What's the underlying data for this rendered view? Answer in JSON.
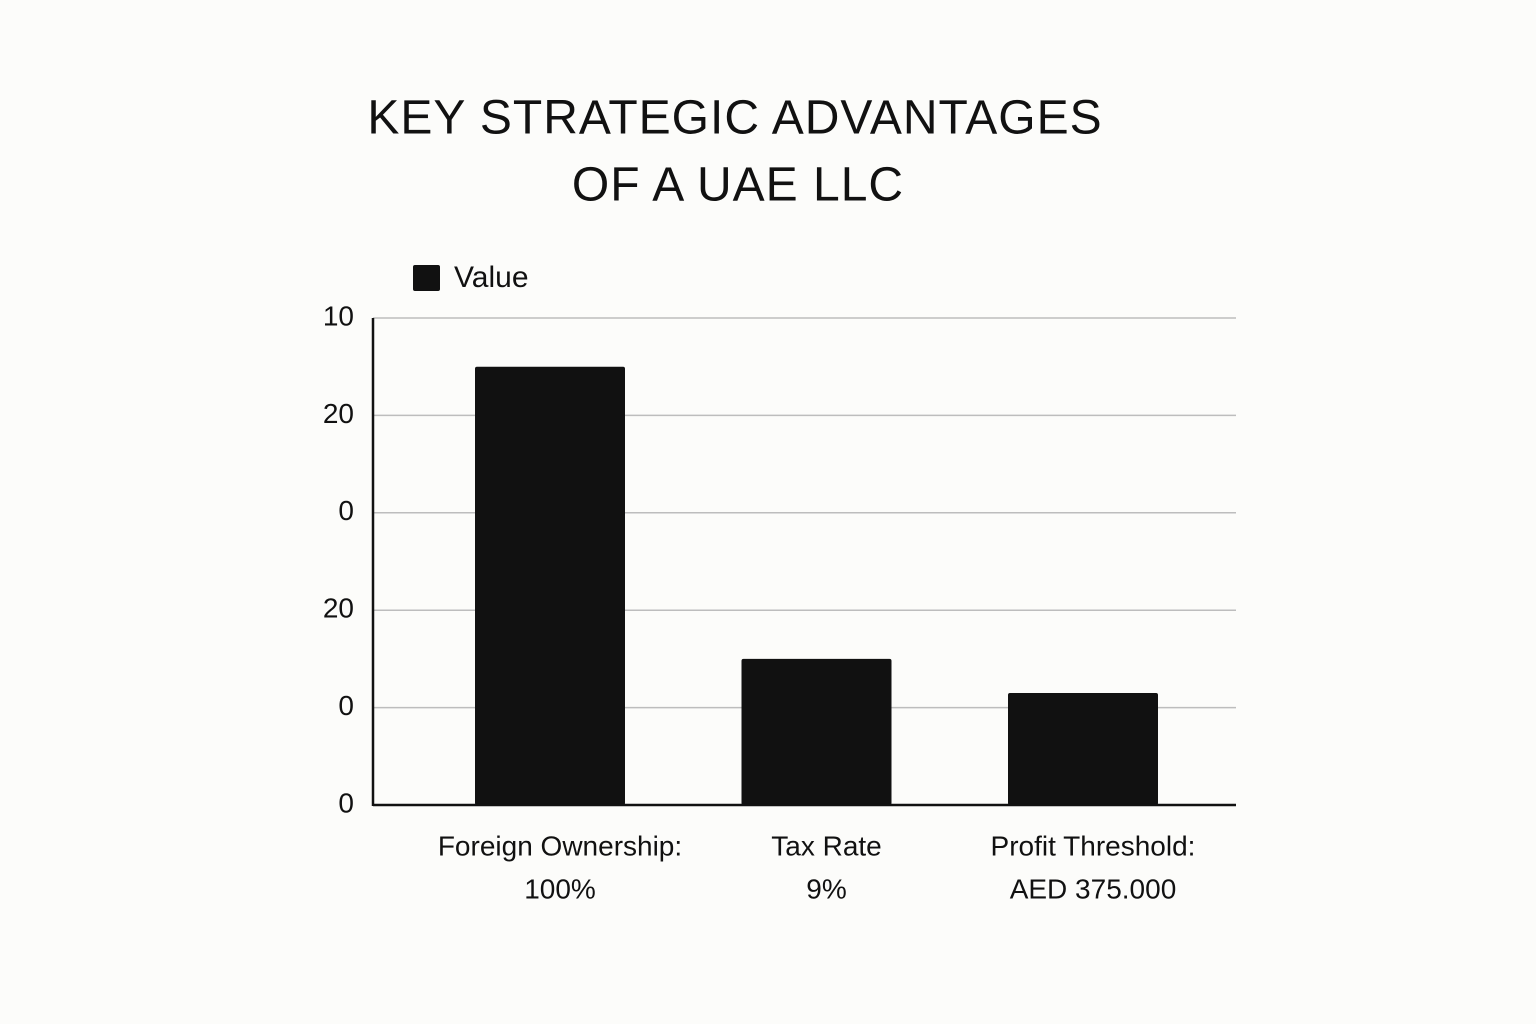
{
  "chart_data": {
    "type": "bar",
    "title": [
      "KEY STRATEGIC ADVANTAGES",
      "OF A UAE LLC"
    ],
    "categories": [
      [
        "Foreign Ownership:",
        "100%"
      ],
      [
        "Tax Rate",
        "9%"
      ],
      [
        "Profit Threshold:",
        "AED 375.000"
      ]
    ],
    "series": [
      {
        "name": "Value",
        "color": "#111111",
        "values": [
          90,
          30,
          23
        ]
      }
    ],
    "ylim": [
      0,
      100
    ],
    "yticks": [
      0,
      {
        "value": 20,
        "label": "0"
      },
      {
        "value": 40,
        "label": "20"
      },
      {
        "value": 60,
        "label": "0"
      },
      {
        "value": 80,
        "label": "20"
      },
      {
        "value": 100,
        "label": "10"
      }
    ],
    "grid": true,
    "legend": "top-left"
  }
}
